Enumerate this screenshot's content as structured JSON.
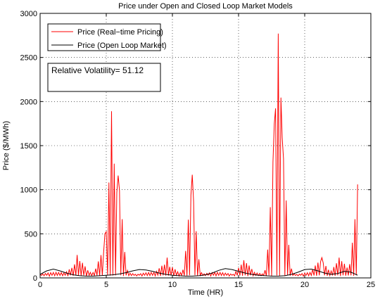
{
  "chart_data": {
    "type": "line",
    "title": "Price under Open and Closed Loop Market Models",
    "xlabel": "Time (HR)",
    "ylabel": "Price ($/MWh)",
    "xlim": [
      0,
      25
    ],
    "ylim": [
      0,
      3000
    ],
    "xticks": [
      0,
      5,
      10,
      15,
      20,
      25
    ],
    "yticks": [
      0,
      500,
      1000,
      1500,
      2000,
      2500,
      3000
    ],
    "grid": true,
    "legend_position": "top-left",
    "series": [
      {
        "name": "Price (Real−time Pricing)",
        "color": "#ff0000",
        "peaks": [
          {
            "x": 2.8,
            "y": 260
          },
          {
            "x": 4.9,
            "y": 500
          },
          {
            "x": 5.4,
            "y": 1890
          },
          {
            "x": 5.9,
            "y": 1160
          },
          {
            "x": 9.6,
            "y": 230
          },
          {
            "x": 11.5,
            "y": 1170
          },
          {
            "x": 15.4,
            "y": 200
          },
          {
            "x": 17.7,
            "y": 1750
          },
          {
            "x": 18.0,
            "y": 2770
          },
          {
            "x": 18.3,
            "y": 1590
          },
          {
            "x": 21.3,
            "y": 230
          },
          {
            "x": 22.6,
            "y": 230
          },
          {
            "x": 24.0,
            "y": 1060
          }
        ]
      },
      {
        "name": "Price (Open Loop Market)",
        "color": "#000000",
        "points": [
          [
            0,
            40
          ],
          [
            0.5,
            80
          ],
          [
            1.0,
            100
          ],
          [
            1.5,
            80
          ],
          [
            2.0,
            55
          ],
          [
            2.5,
            35
          ],
          [
            3.0,
            25
          ],
          [
            3.5,
            20
          ],
          [
            4.0,
            20
          ],
          [
            4.5,
            25
          ],
          [
            5.0,
            30
          ],
          [
            5.5,
            35
          ],
          [
            6.0,
            45
          ],
          [
            6.5,
            60
          ],
          [
            7.0,
            80
          ],
          [
            7.5,
            95
          ],
          [
            8.0,
            90
          ],
          [
            8.5,
            75
          ],
          [
            9.0,
            55
          ],
          [
            9.5,
            40
          ],
          [
            10.0,
            30
          ],
          [
            10.5,
            25
          ],
          [
            11.0,
            20
          ],
          [
            11.5,
            20
          ],
          [
            12.0,
            25
          ],
          [
            12.5,
            35
          ],
          [
            13.0,
            55
          ],
          [
            13.5,
            85
          ],
          [
            14.0,
            105
          ],
          [
            14.5,
            95
          ],
          [
            15.0,
            75
          ],
          [
            15.5,
            55
          ],
          [
            16.0,
            40
          ],
          [
            16.5,
            30
          ],
          [
            17.0,
            25
          ],
          [
            17.5,
            20
          ],
          [
            18.0,
            20
          ],
          [
            18.5,
            25
          ],
          [
            19.0,
            40
          ],
          [
            19.5,
            65
          ],
          [
            20.0,
            95
          ],
          [
            20.5,
            100
          ],
          [
            21.0,
            80
          ],
          [
            21.5,
            55
          ],
          [
            22.0,
            40
          ],
          [
            22.5,
            50
          ],
          [
            23.0,
            75
          ],
          [
            23.5,
            65
          ],
          [
            24.0,
            30
          ]
        ]
      }
    ],
    "annotation": "Relative Volatility= 51.12"
  }
}
